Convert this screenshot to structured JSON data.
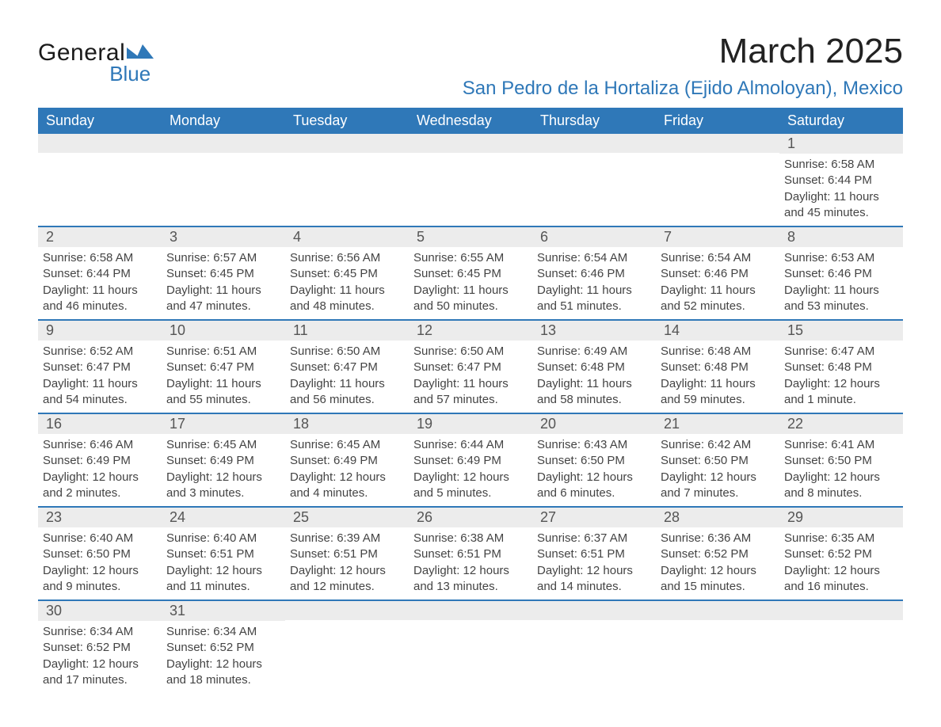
{
  "logo": {
    "general": "General",
    "blue": "Blue",
    "flag_color": "#2f78b8"
  },
  "title": "March 2025",
  "location": "San Pedro de la Hortaliza (Ejido Almoloyan), Mexico",
  "colors": {
    "header_bg": "#2f78b8",
    "header_fg": "#ffffff",
    "daynum_bg": "#ececec",
    "row_divider": "#2f78b8",
    "text": "#3a3a3a"
  },
  "fonts": {
    "title_size_pt": 33,
    "location_size_pt": 18,
    "body_size_pt": 11
  },
  "days_of_week": [
    "Sunday",
    "Monday",
    "Tuesday",
    "Wednesday",
    "Thursday",
    "Friday",
    "Saturday"
  ],
  "weeks": [
    [
      {
        "n": "",
        "sunrise": "",
        "sunset": "",
        "daylight": ""
      },
      {
        "n": "",
        "sunrise": "",
        "sunset": "",
        "daylight": ""
      },
      {
        "n": "",
        "sunrise": "",
        "sunset": "",
        "daylight": ""
      },
      {
        "n": "",
        "sunrise": "",
        "sunset": "",
        "daylight": ""
      },
      {
        "n": "",
        "sunrise": "",
        "sunset": "",
        "daylight": ""
      },
      {
        "n": "",
        "sunrise": "",
        "sunset": "",
        "daylight": ""
      },
      {
        "n": "1",
        "sunrise": "Sunrise: 6:58 AM",
        "sunset": "Sunset: 6:44 PM",
        "daylight": "Daylight: 11 hours and 45 minutes."
      }
    ],
    [
      {
        "n": "2",
        "sunrise": "Sunrise: 6:58 AM",
        "sunset": "Sunset: 6:44 PM",
        "daylight": "Daylight: 11 hours and 46 minutes."
      },
      {
        "n": "3",
        "sunrise": "Sunrise: 6:57 AM",
        "sunset": "Sunset: 6:45 PM",
        "daylight": "Daylight: 11 hours and 47 minutes."
      },
      {
        "n": "4",
        "sunrise": "Sunrise: 6:56 AM",
        "sunset": "Sunset: 6:45 PM",
        "daylight": "Daylight: 11 hours and 48 minutes."
      },
      {
        "n": "5",
        "sunrise": "Sunrise: 6:55 AM",
        "sunset": "Sunset: 6:45 PM",
        "daylight": "Daylight: 11 hours and 50 minutes."
      },
      {
        "n": "6",
        "sunrise": "Sunrise: 6:54 AM",
        "sunset": "Sunset: 6:46 PM",
        "daylight": "Daylight: 11 hours and 51 minutes."
      },
      {
        "n": "7",
        "sunrise": "Sunrise: 6:54 AM",
        "sunset": "Sunset: 6:46 PM",
        "daylight": "Daylight: 11 hours and 52 minutes."
      },
      {
        "n": "8",
        "sunrise": "Sunrise: 6:53 AM",
        "sunset": "Sunset: 6:46 PM",
        "daylight": "Daylight: 11 hours and 53 minutes."
      }
    ],
    [
      {
        "n": "9",
        "sunrise": "Sunrise: 6:52 AM",
        "sunset": "Sunset: 6:47 PM",
        "daylight": "Daylight: 11 hours and 54 minutes."
      },
      {
        "n": "10",
        "sunrise": "Sunrise: 6:51 AM",
        "sunset": "Sunset: 6:47 PM",
        "daylight": "Daylight: 11 hours and 55 minutes."
      },
      {
        "n": "11",
        "sunrise": "Sunrise: 6:50 AM",
        "sunset": "Sunset: 6:47 PM",
        "daylight": "Daylight: 11 hours and 56 minutes."
      },
      {
        "n": "12",
        "sunrise": "Sunrise: 6:50 AM",
        "sunset": "Sunset: 6:47 PM",
        "daylight": "Daylight: 11 hours and 57 minutes."
      },
      {
        "n": "13",
        "sunrise": "Sunrise: 6:49 AM",
        "sunset": "Sunset: 6:48 PM",
        "daylight": "Daylight: 11 hours and 58 minutes."
      },
      {
        "n": "14",
        "sunrise": "Sunrise: 6:48 AM",
        "sunset": "Sunset: 6:48 PM",
        "daylight": "Daylight: 11 hours and 59 minutes."
      },
      {
        "n": "15",
        "sunrise": "Sunrise: 6:47 AM",
        "sunset": "Sunset: 6:48 PM",
        "daylight": "Daylight: 12 hours and 1 minute."
      }
    ],
    [
      {
        "n": "16",
        "sunrise": "Sunrise: 6:46 AM",
        "sunset": "Sunset: 6:49 PM",
        "daylight": "Daylight: 12 hours and 2 minutes."
      },
      {
        "n": "17",
        "sunrise": "Sunrise: 6:45 AM",
        "sunset": "Sunset: 6:49 PM",
        "daylight": "Daylight: 12 hours and 3 minutes."
      },
      {
        "n": "18",
        "sunrise": "Sunrise: 6:45 AM",
        "sunset": "Sunset: 6:49 PM",
        "daylight": "Daylight: 12 hours and 4 minutes."
      },
      {
        "n": "19",
        "sunrise": "Sunrise: 6:44 AM",
        "sunset": "Sunset: 6:49 PM",
        "daylight": "Daylight: 12 hours and 5 minutes."
      },
      {
        "n": "20",
        "sunrise": "Sunrise: 6:43 AM",
        "sunset": "Sunset: 6:50 PM",
        "daylight": "Daylight: 12 hours and 6 minutes."
      },
      {
        "n": "21",
        "sunrise": "Sunrise: 6:42 AM",
        "sunset": "Sunset: 6:50 PM",
        "daylight": "Daylight: 12 hours and 7 minutes."
      },
      {
        "n": "22",
        "sunrise": "Sunrise: 6:41 AM",
        "sunset": "Sunset: 6:50 PM",
        "daylight": "Daylight: 12 hours and 8 minutes."
      }
    ],
    [
      {
        "n": "23",
        "sunrise": "Sunrise: 6:40 AM",
        "sunset": "Sunset: 6:50 PM",
        "daylight": "Daylight: 12 hours and 9 minutes."
      },
      {
        "n": "24",
        "sunrise": "Sunrise: 6:40 AM",
        "sunset": "Sunset: 6:51 PM",
        "daylight": "Daylight: 12 hours and 11 minutes."
      },
      {
        "n": "25",
        "sunrise": "Sunrise: 6:39 AM",
        "sunset": "Sunset: 6:51 PM",
        "daylight": "Daylight: 12 hours and 12 minutes."
      },
      {
        "n": "26",
        "sunrise": "Sunrise: 6:38 AM",
        "sunset": "Sunset: 6:51 PM",
        "daylight": "Daylight: 12 hours and 13 minutes."
      },
      {
        "n": "27",
        "sunrise": "Sunrise: 6:37 AM",
        "sunset": "Sunset: 6:51 PM",
        "daylight": "Daylight: 12 hours and 14 minutes."
      },
      {
        "n": "28",
        "sunrise": "Sunrise: 6:36 AM",
        "sunset": "Sunset: 6:52 PM",
        "daylight": "Daylight: 12 hours and 15 minutes."
      },
      {
        "n": "29",
        "sunrise": "Sunrise: 6:35 AM",
        "sunset": "Sunset: 6:52 PM",
        "daylight": "Daylight: 12 hours and 16 minutes."
      }
    ],
    [
      {
        "n": "30",
        "sunrise": "Sunrise: 6:34 AM",
        "sunset": "Sunset: 6:52 PM",
        "daylight": "Daylight: 12 hours and 17 minutes."
      },
      {
        "n": "31",
        "sunrise": "Sunrise: 6:34 AM",
        "sunset": "Sunset: 6:52 PM",
        "daylight": "Daylight: 12 hours and 18 minutes."
      },
      {
        "n": "",
        "sunrise": "",
        "sunset": "",
        "daylight": ""
      },
      {
        "n": "",
        "sunrise": "",
        "sunset": "",
        "daylight": ""
      },
      {
        "n": "",
        "sunrise": "",
        "sunset": "",
        "daylight": ""
      },
      {
        "n": "",
        "sunrise": "",
        "sunset": "",
        "daylight": ""
      },
      {
        "n": "",
        "sunrise": "",
        "sunset": "",
        "daylight": ""
      }
    ]
  ]
}
